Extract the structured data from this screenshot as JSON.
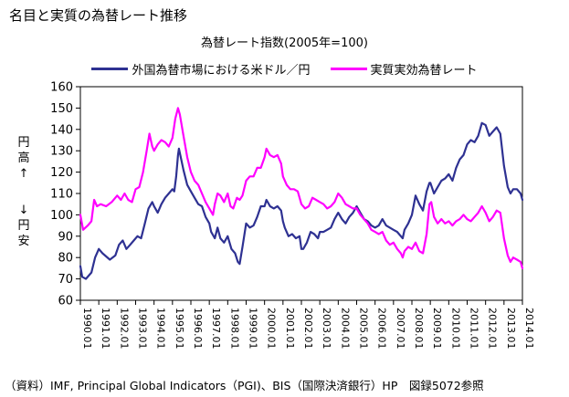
{
  "page": {
    "title": "名目と実質の為替レート推移"
  },
  "source_note": "（資料）IMF, Principal Global Indicators（PGI)、BIS（国際決済銀行）HP　図録5072参照",
  "y_axis": {
    "up_label": [
      "円",
      "高",
      "↑"
    ],
    "down_label": [
      "↓",
      "円",
      "安"
    ]
  },
  "colors": {
    "nominal": "#2e3192",
    "real": "#ff00ff",
    "axis": "#000000",
    "grid": "#000000"
  },
  "chart_data": {
    "type": "line",
    "title": "為替レート指数(2005年=100)",
    "ylim": [
      60,
      160
    ],
    "yticks": [
      60,
      70,
      80,
      90,
      100,
      110,
      120,
      130,
      140,
      150,
      160
    ],
    "xlim": [
      1990.0,
      2014.0
    ],
    "xtick_labels": [
      "1990.01",
      "1991.01",
      "1992.01",
      "1993.01",
      "1994.01",
      "1995.01",
      "1996.01",
      "1997.01",
      "1998.01",
      "1999.01",
      "2000.01",
      "2001.01",
      "2002.01",
      "2003.01",
      "2004.01",
      "2005.01",
      "2006.01",
      "2007.01",
      "2008.01",
      "2009.01",
      "2010.01",
      "2011.01",
      "2012.01",
      "2013.01",
      "2014.01"
    ],
    "grid": false,
    "legend_position": "top",
    "series": [
      {
        "name": "外国為替市場における米ドル／円",
        "color_key": "nominal",
        "points": [
          [
            1990.0,
            76
          ],
          [
            1990.1,
            71
          ],
          [
            1990.3,
            70
          ],
          [
            1990.6,
            73
          ],
          [
            1990.8,
            80
          ],
          [
            1991.0,
            84
          ],
          [
            1991.2,
            82
          ],
          [
            1991.6,
            79
          ],
          [
            1991.9,
            81
          ],
          [
            1992.1,
            86
          ],
          [
            1992.3,
            88
          ],
          [
            1992.5,
            84
          ],
          [
            1992.7,
            86
          ],
          [
            1992.9,
            88
          ],
          [
            1993.1,
            90
          ],
          [
            1993.3,
            89
          ],
          [
            1993.5,
            96
          ],
          [
            1993.7,
            103
          ],
          [
            1993.9,
            106
          ],
          [
            1994.0,
            104
          ],
          [
            1994.2,
            101
          ],
          [
            1994.4,
            105
          ],
          [
            1994.6,
            108
          ],
          [
            1994.8,
            110
          ],
          [
            1995.0,
            112
          ],
          [
            1995.1,
            111
          ],
          [
            1995.2,
            118
          ],
          [
            1995.3,
            128
          ],
          [
            1995.35,
            131
          ],
          [
            1995.45,
            127
          ],
          [
            1995.6,
            121
          ],
          [
            1995.8,
            114
          ],
          [
            1996.0,
            111
          ],
          [
            1996.2,
            108
          ],
          [
            1996.4,
            105
          ],
          [
            1996.6,
            104
          ],
          [
            1996.8,
            99
          ],
          [
            1997.0,
            96
          ],
          [
            1997.1,
            92
          ],
          [
            1997.3,
            89
          ],
          [
            1997.45,
            94
          ],
          [
            1997.6,
            89
          ],
          [
            1997.8,
            87
          ],
          [
            1998.0,
            90
          ],
          [
            1998.2,
            84
          ],
          [
            1998.4,
            82
          ],
          [
            1998.55,
            78
          ],
          [
            1998.65,
            77
          ],
          [
            1998.8,
            85
          ],
          [
            1999.0,
            96
          ],
          [
            1999.2,
            94
          ],
          [
            1999.4,
            95
          ],
          [
            1999.6,
            99
          ],
          [
            1999.8,
            104
          ],
          [
            2000.0,
            104
          ],
          [
            2000.1,
            107
          ],
          [
            2000.3,
            104
          ],
          [
            2000.5,
            103
          ],
          [
            2000.7,
            104
          ],
          [
            2000.9,
            102
          ],
          [
            2001.0,
            97
          ],
          [
            2001.1,
            94
          ],
          [
            2001.3,
            90
          ],
          [
            2001.5,
            91
          ],
          [
            2001.7,
            89
          ],
          [
            2001.9,
            90
          ],
          [
            2002.0,
            84
          ],
          [
            2002.1,
            84
          ],
          [
            2002.3,
            87
          ],
          [
            2002.5,
            92
          ],
          [
            2002.7,
            91
          ],
          [
            2002.9,
            89
          ],
          [
            2003.0,
            92
          ],
          [
            2003.2,
            92
          ],
          [
            2003.4,
            93
          ],
          [
            2003.6,
            94
          ],
          [
            2003.8,
            98
          ],
          [
            2004.0,
            101
          ],
          [
            2004.2,
            98
          ],
          [
            2004.4,
            96
          ],
          [
            2004.6,
            99
          ],
          [
            2004.8,
            101
          ],
          [
            2005.0,
            104
          ],
          [
            2005.2,
            101
          ],
          [
            2005.4,
            98
          ],
          [
            2005.6,
            97
          ],
          [
            2005.8,
            95
          ],
          [
            2006.0,
            94
          ],
          [
            2006.2,
            95
          ],
          [
            2006.4,
            98
          ],
          [
            2006.6,
            95
          ],
          [
            2006.8,
            94
          ],
          [
            2007.0,
            93
          ],
          [
            2007.2,
            92
          ],
          [
            2007.4,
            90
          ],
          [
            2007.5,
            89
          ],
          [
            2007.6,
            93
          ],
          [
            2007.8,
            96
          ],
          [
            2008.0,
            100
          ],
          [
            2008.2,
            109
          ],
          [
            2008.4,
            105
          ],
          [
            2008.6,
            102
          ],
          [
            2008.8,
            111
          ],
          [
            2008.95,
            115
          ],
          [
            2009.0,
            115
          ],
          [
            2009.2,
            110
          ],
          [
            2009.4,
            113
          ],
          [
            2009.6,
            116
          ],
          [
            2009.8,
            117
          ],
          [
            2010.0,
            119
          ],
          [
            2010.2,
            116
          ],
          [
            2010.4,
            122
          ],
          [
            2010.6,
            126
          ],
          [
            2010.8,
            128
          ],
          [
            2011.0,
            133
          ],
          [
            2011.2,
            135
          ],
          [
            2011.4,
            134
          ],
          [
            2011.6,
            137
          ],
          [
            2011.8,
            143
          ],
          [
            2012.0,
            142
          ],
          [
            2012.2,
            137
          ],
          [
            2012.4,
            139
          ],
          [
            2012.6,
            141
          ],
          [
            2012.8,
            138
          ],
          [
            2013.0,
            123
          ],
          [
            2013.2,
            113
          ],
          [
            2013.35,
            110
          ],
          [
            2013.5,
            112
          ],
          [
            2013.7,
            112
          ],
          [
            2013.9,
            110
          ],
          [
            2014.0,
            107
          ]
        ]
      },
      {
        "name": "実質実効為替レート",
        "color_key": "real",
        "points": [
          [
            1990.0,
            100
          ],
          [
            1990.15,
            93
          ],
          [
            1990.4,
            95
          ],
          [
            1990.6,
            97
          ],
          [
            1990.75,
            107
          ],
          [
            1990.9,
            104
          ],
          [
            1991.1,
            105
          ],
          [
            1991.4,
            104
          ],
          [
            1991.7,
            106
          ],
          [
            1992.0,
            109
          ],
          [
            1992.2,
            107
          ],
          [
            1992.4,
            110
          ],
          [
            1992.6,
            107
          ],
          [
            1992.8,
            106
          ],
          [
            1993.0,
            112
          ],
          [
            1993.2,
            113
          ],
          [
            1993.4,
            120
          ],
          [
            1993.6,
            130
          ],
          [
            1993.75,
            138
          ],
          [
            1993.9,
            132
          ],
          [
            1994.0,
            130
          ],
          [
            1994.2,
            133
          ],
          [
            1994.4,
            135
          ],
          [
            1994.6,
            134
          ],
          [
            1994.8,
            132
          ],
          [
            1995.0,
            136
          ],
          [
            1995.15,
            145
          ],
          [
            1995.3,
            150
          ],
          [
            1995.4,
            147
          ],
          [
            1995.6,
            137
          ],
          [
            1995.8,
            127
          ],
          [
            1996.0,
            120
          ],
          [
            1996.2,
            116
          ],
          [
            1996.4,
            114
          ],
          [
            1996.6,
            110
          ],
          [
            1996.8,
            106
          ],
          [
            1997.0,
            103
          ],
          [
            1997.2,
            100
          ],
          [
            1997.3,
            105
          ],
          [
            1997.45,
            110
          ],
          [
            1997.6,
            109
          ],
          [
            1997.8,
            106
          ],
          [
            1998.0,
            110
          ],
          [
            1998.15,
            104
          ],
          [
            1998.3,
            103
          ],
          [
            1998.5,
            108
          ],
          [
            1998.65,
            107
          ],
          [
            1998.8,
            109
          ],
          [
            1999.0,
            116
          ],
          [
            1999.2,
            118
          ],
          [
            1999.4,
            118
          ],
          [
            1999.6,
            122
          ],
          [
            1999.8,
            122
          ],
          [
            2000.0,
            127
          ],
          [
            2000.1,
            131
          ],
          [
            2000.3,
            128
          ],
          [
            2000.5,
            127
          ],
          [
            2000.7,
            128
          ],
          [
            2000.9,
            124
          ],
          [
            2001.0,
            118
          ],
          [
            2001.2,
            114
          ],
          [
            2001.4,
            112
          ],
          [
            2001.6,
            112
          ],
          [
            2001.8,
            111
          ],
          [
            2002.0,
            105
          ],
          [
            2002.2,
            103
          ],
          [
            2002.4,
            104
          ],
          [
            2002.6,
            108
          ],
          [
            2002.8,
            107
          ],
          [
            2003.0,
            106
          ],
          [
            2003.2,
            105
          ],
          [
            2003.4,
            103
          ],
          [
            2003.6,
            104
          ],
          [
            2003.8,
            106
          ],
          [
            2004.0,
            110
          ],
          [
            2004.2,
            108
          ],
          [
            2004.4,
            105
          ],
          [
            2004.6,
            104
          ],
          [
            2004.8,
            103
          ],
          [
            2005.0,
            103
          ],
          [
            2005.2,
            100
          ],
          [
            2005.4,
            98
          ],
          [
            2005.6,
            96
          ],
          [
            2005.8,
            93
          ],
          [
            2006.0,
            92
          ],
          [
            2006.2,
            91
          ],
          [
            2006.4,
            92
          ],
          [
            2006.6,
            88
          ],
          [
            2006.8,
            86
          ],
          [
            2007.0,
            87
          ],
          [
            2007.2,
            84
          ],
          [
            2007.4,
            82
          ],
          [
            2007.5,
            80
          ],
          [
            2007.6,
            83
          ],
          [
            2007.8,
            85
          ],
          [
            2008.0,
            84
          ],
          [
            2008.2,
            87
          ],
          [
            2008.4,
            83
          ],
          [
            2008.6,
            82
          ],
          [
            2008.8,
            91
          ],
          [
            2008.95,
            105
          ],
          [
            2009.05,
            106
          ],
          [
            2009.2,
            99
          ],
          [
            2009.4,
            96
          ],
          [
            2009.6,
            98
          ],
          [
            2009.8,
            96
          ],
          [
            2010.0,
            97
          ],
          [
            2010.2,
            95
          ],
          [
            2010.4,
            97
          ],
          [
            2010.6,
            98
          ],
          [
            2010.8,
            100
          ],
          [
            2011.0,
            98
          ],
          [
            2011.2,
            97
          ],
          [
            2011.4,
            99
          ],
          [
            2011.6,
            101
          ],
          [
            2011.8,
            104
          ],
          [
            2012.0,
            101
          ],
          [
            2012.2,
            97
          ],
          [
            2012.4,
            99
          ],
          [
            2012.6,
            102
          ],
          [
            2012.8,
            101
          ],
          [
            2013.0,
            89
          ],
          [
            2013.2,
            81
          ],
          [
            2013.35,
            78
          ],
          [
            2013.5,
            80
          ],
          [
            2013.7,
            79
          ],
          [
            2013.9,
            78
          ],
          [
            2014.0,
            75
          ]
        ]
      }
    ]
  }
}
